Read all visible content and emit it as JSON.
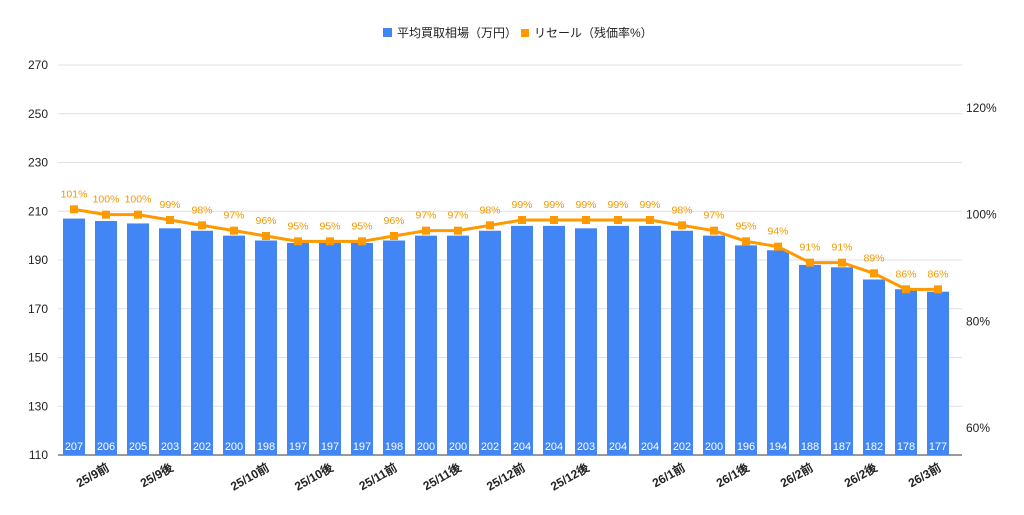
{
  "chart_data": {
    "type": "bar+line",
    "title": "",
    "legend_position": "top",
    "series": [
      {
        "name": "平均買取相場（万円）",
        "type": "bar",
        "axis": "left",
        "color": "#4285F4",
        "values": [
          207,
          206,
          205,
          203,
          202,
          200,
          198,
          197,
          197,
          197,
          198,
          200,
          200,
          202,
          204,
          204,
          203,
          204,
          204,
          202,
          200,
          196,
          194,
          188,
          187,
          182,
          178,
          177
        ]
      },
      {
        "name": "リセール（残価率%）",
        "type": "line",
        "axis": "right",
        "color": "#FF9900",
        "values": [
          101,
          100,
          100,
          99,
          98,
          97,
          96,
          95,
          95,
          95,
          96,
          97,
          97,
          98,
          99,
          99,
          99,
          99,
          99,
          98,
          97,
          95,
          94,
          91,
          91,
          89,
          86,
          86
        ]
      }
    ],
    "x_labels": [
      {
        "index": 1,
        "label": "25/9前"
      },
      {
        "index": 3,
        "label": "25/9後"
      },
      {
        "index": 6,
        "label": "25/10前"
      },
      {
        "index": 8,
        "label": "25/10後"
      },
      {
        "index": 10,
        "label": "25/11前"
      },
      {
        "index": 12,
        "label": "25/11後"
      },
      {
        "index": 14,
        "label": "25/12前"
      },
      {
        "index": 16,
        "label": "25/12後"
      },
      {
        "index": 19,
        "label": "26/1前"
      },
      {
        "index": 21,
        "label": "26/1後"
      },
      {
        "index": 23,
        "label": "26/2前"
      },
      {
        "index": 25,
        "label": "26/2後"
      },
      {
        "index": 27,
        "label": "26/3前"
      }
    ],
    "left_axis": {
      "ylim": [
        110,
        270
      ],
      "ticks": [
        110,
        130,
        150,
        170,
        190,
        210,
        230,
        250,
        270
      ]
    },
    "right_axis": {
      "ylim": [
        60,
        120
      ],
      "ticks": [
        60,
        80,
        100,
        120
      ],
      "suffix": "%"
    },
    "grid": true
  }
}
